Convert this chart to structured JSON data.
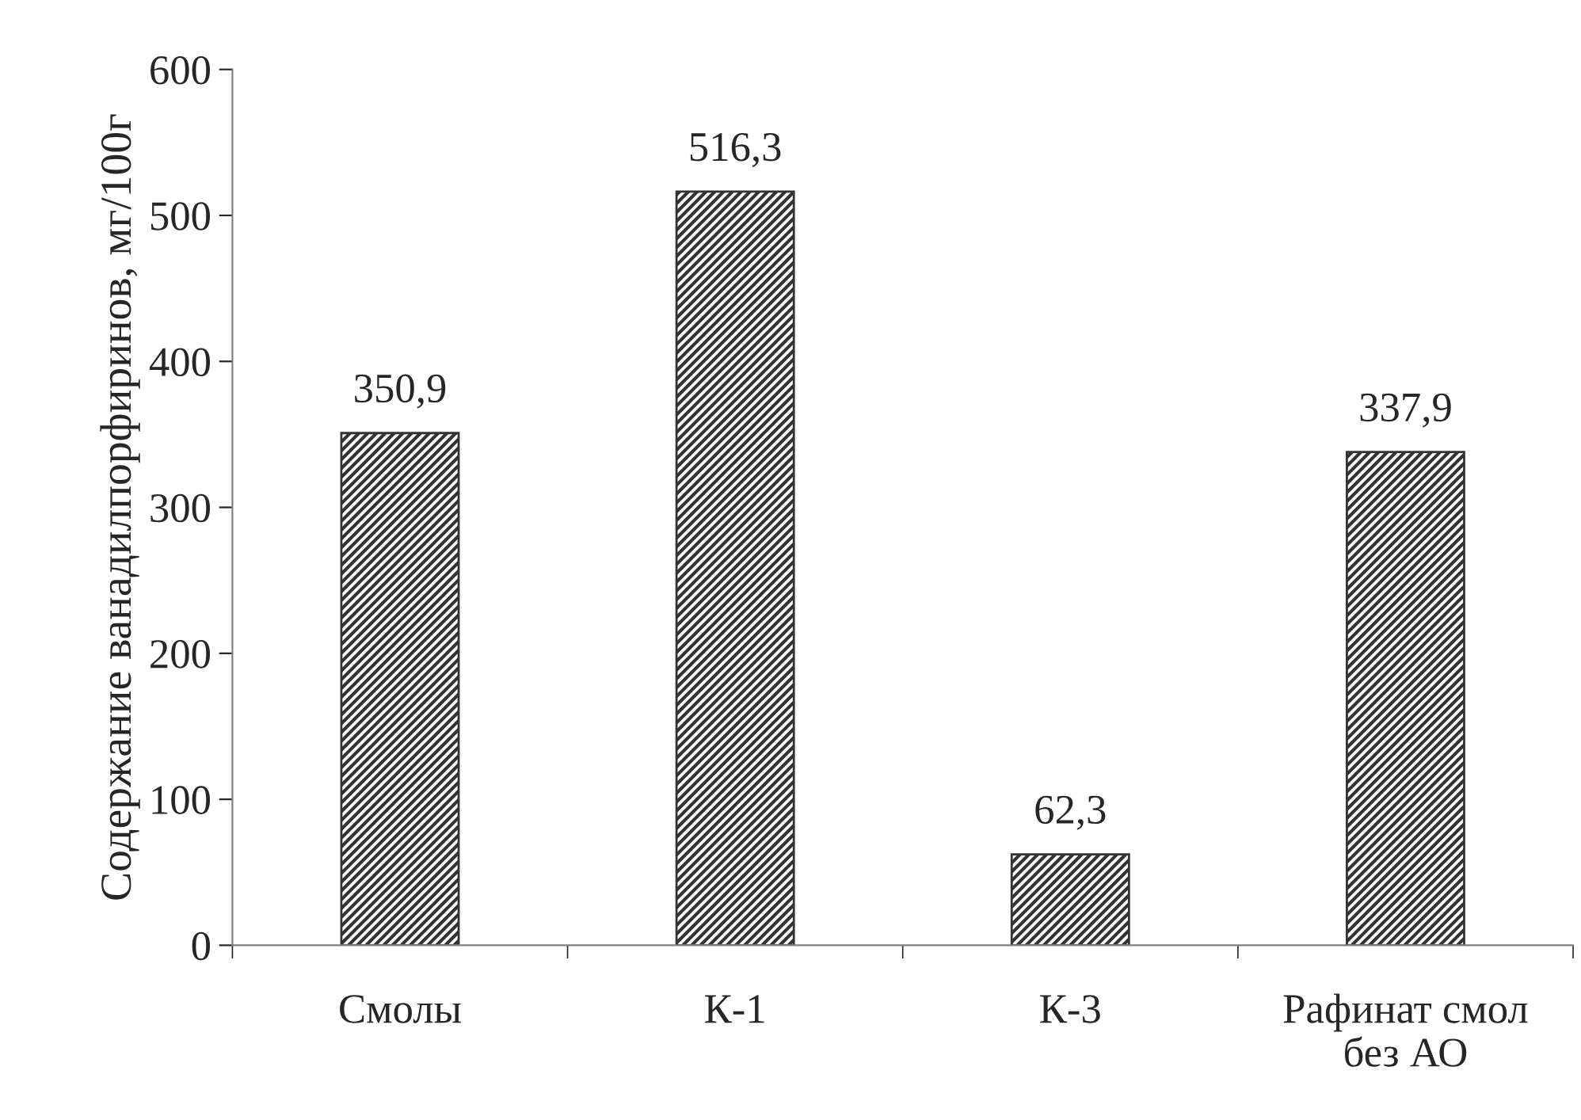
{
  "chart_data": {
    "type": "bar",
    "ylabel": "Содержание ванадилпорфиринов, мг/100г",
    "categories": [
      "Смолы",
      "К-1",
      "К-3",
      "Рафинат смол\nбез АО"
    ],
    "values": [
      350.9,
      516.3,
      62.3,
      337.9
    ],
    "value_labels": [
      "350,9",
      "516,3",
      "62,3",
      "337,9"
    ],
    "color": "#333333",
    "ylim": [
      0,
      600
    ],
    "yticks": [
      0,
      100,
      200,
      300,
      400,
      500,
      600
    ],
    "grid": false,
    "legend": false
  }
}
